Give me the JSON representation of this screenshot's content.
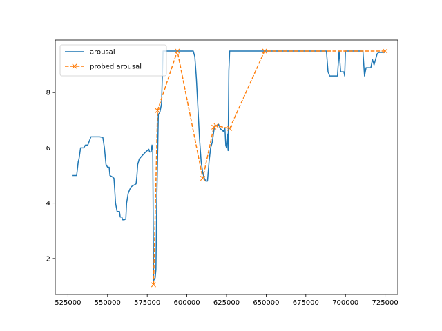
{
  "chart_data": {
    "type": "line",
    "title": "",
    "xlabel": "",
    "ylabel": "",
    "xlim": [
      517000,
      733000
    ],
    "ylim": [
      0.7,
      9.9
    ],
    "xticks": [
      525000,
      550000,
      575000,
      600000,
      625000,
      650000,
      675000,
      700000,
      725000
    ],
    "xtick_labels": [
      "525000",
      "550000",
      "575000",
      "600000",
      "625000",
      "650000",
      "675000",
      "700000",
      "725000"
    ],
    "yticks": [
      2,
      4,
      6,
      8
    ],
    "ytick_labels": [
      "2",
      "4",
      "6",
      "8"
    ],
    "grid": false,
    "legend_position": "top-left",
    "series": [
      {
        "name": "arousal",
        "color": "#1f77b4",
        "style": "solid",
        "marker": "none",
        "points": [
          [
            527500,
            5.0
          ],
          [
            530500,
            5.0
          ],
          [
            531500,
            5.5
          ],
          [
            532000,
            5.6
          ],
          [
            533000,
            6.0
          ],
          [
            535000,
            6.0
          ],
          [
            536000,
            6.1
          ],
          [
            537500,
            6.1
          ],
          [
            538500,
            6.25
          ],
          [
            539500,
            6.4
          ],
          [
            545000,
            6.4
          ],
          [
            547000,
            6.38
          ],
          [
            548000,
            6.0
          ],
          [
            549000,
            5.4
          ],
          [
            550000,
            5.3
          ],
          [
            551000,
            5.3
          ],
          [
            551500,
            5.0
          ],
          [
            553000,
            4.95
          ],
          [
            554000,
            4.9
          ],
          [
            554500,
            4.5
          ],
          [
            555000,
            4.0
          ],
          [
            556000,
            3.7
          ],
          [
            557500,
            3.7
          ],
          [
            558000,
            3.5
          ],
          [
            559000,
            3.5
          ],
          [
            559500,
            3.4
          ],
          [
            560500,
            3.4
          ],
          [
            561500,
            3.43
          ],
          [
            562000,
            4.0
          ],
          [
            563000,
            4.35
          ],
          [
            564000,
            4.5
          ],
          [
            565000,
            4.6
          ],
          [
            568000,
            4.7
          ],
          [
            568500,
            5.0
          ],
          [
            569000,
            5.4
          ],
          [
            570000,
            5.6
          ],
          [
            571500,
            5.7
          ],
          [
            574000,
            5.85
          ],
          [
            576000,
            5.95
          ],
          [
            576500,
            5.85
          ],
          [
            577500,
            5.85
          ],
          [
            578000,
            6.1
          ],
          [
            578500,
            5.9
          ],
          [
            579000,
            1.2
          ],
          [
            580000,
            1.3
          ],
          [
            580500,
            1.6
          ],
          [
            581000,
            4.0
          ],
          [
            582000,
            7.2
          ],
          [
            583000,
            7.3
          ],
          [
            584000,
            7.6
          ],
          [
            585000,
            9.5
          ],
          [
            604000,
            9.5
          ],
          [
            605000,
            9.3
          ],
          [
            606000,
            8.5
          ],
          [
            608000,
            6.3
          ],
          [
            609000,
            5.5
          ],
          [
            610000,
            5.1
          ],
          [
            611000,
            4.9
          ],
          [
            612000,
            4.8
          ],
          [
            613000,
            4.8
          ],
          [
            614000,
            5.5
          ],
          [
            615000,
            6.0
          ],
          [
            616000,
            6.2
          ],
          [
            617000,
            6.6
          ],
          [
            617500,
            6.8
          ],
          [
            618500,
            6.8
          ],
          [
            620000,
            6.85
          ],
          [
            621000,
            6.7
          ],
          [
            622000,
            6.65
          ],
          [
            623000,
            6.6
          ],
          [
            624000,
            6.7
          ],
          [
            624500,
            6.1
          ],
          [
            625000,
            6.0
          ],
          [
            625500,
            6.5
          ],
          [
            626000,
            5.9
          ],
          [
            626500,
            8.8
          ],
          [
            627000,
            9.5
          ],
          [
            688000,
            9.5
          ],
          [
            689000,
            8.75
          ],
          [
            690000,
            8.6
          ],
          [
            695000,
            8.6
          ],
          [
            696000,
            9.5
          ],
          [
            697000,
            8.75
          ],
          [
            699000,
            8.75
          ],
          [
            699500,
            8.6
          ],
          [
            700000,
            9.5
          ],
          [
            711000,
            9.5
          ],
          [
            712000,
            8.6
          ],
          [
            713000,
            8.9
          ],
          [
            716000,
            8.9
          ],
          [
            717000,
            9.2
          ],
          [
            718000,
            9.0
          ],
          [
            720000,
            9.4
          ],
          [
            721000,
            9.45
          ],
          [
            725000,
            9.45
          ]
        ]
      },
      {
        "name": "probed arousal",
        "color": "#ff7f0e",
        "style": "dashed",
        "marker": "x",
        "points": [
          [
            579000,
            1.05
          ],
          [
            581500,
            7.35
          ],
          [
            594000,
            9.5
          ],
          [
            610000,
            4.9
          ],
          [
            617000,
            6.75
          ],
          [
            618500,
            6.8
          ],
          [
            627000,
            6.7
          ],
          [
            649000,
            9.5
          ],
          [
            725000,
            9.5
          ]
        ]
      }
    ]
  }
}
